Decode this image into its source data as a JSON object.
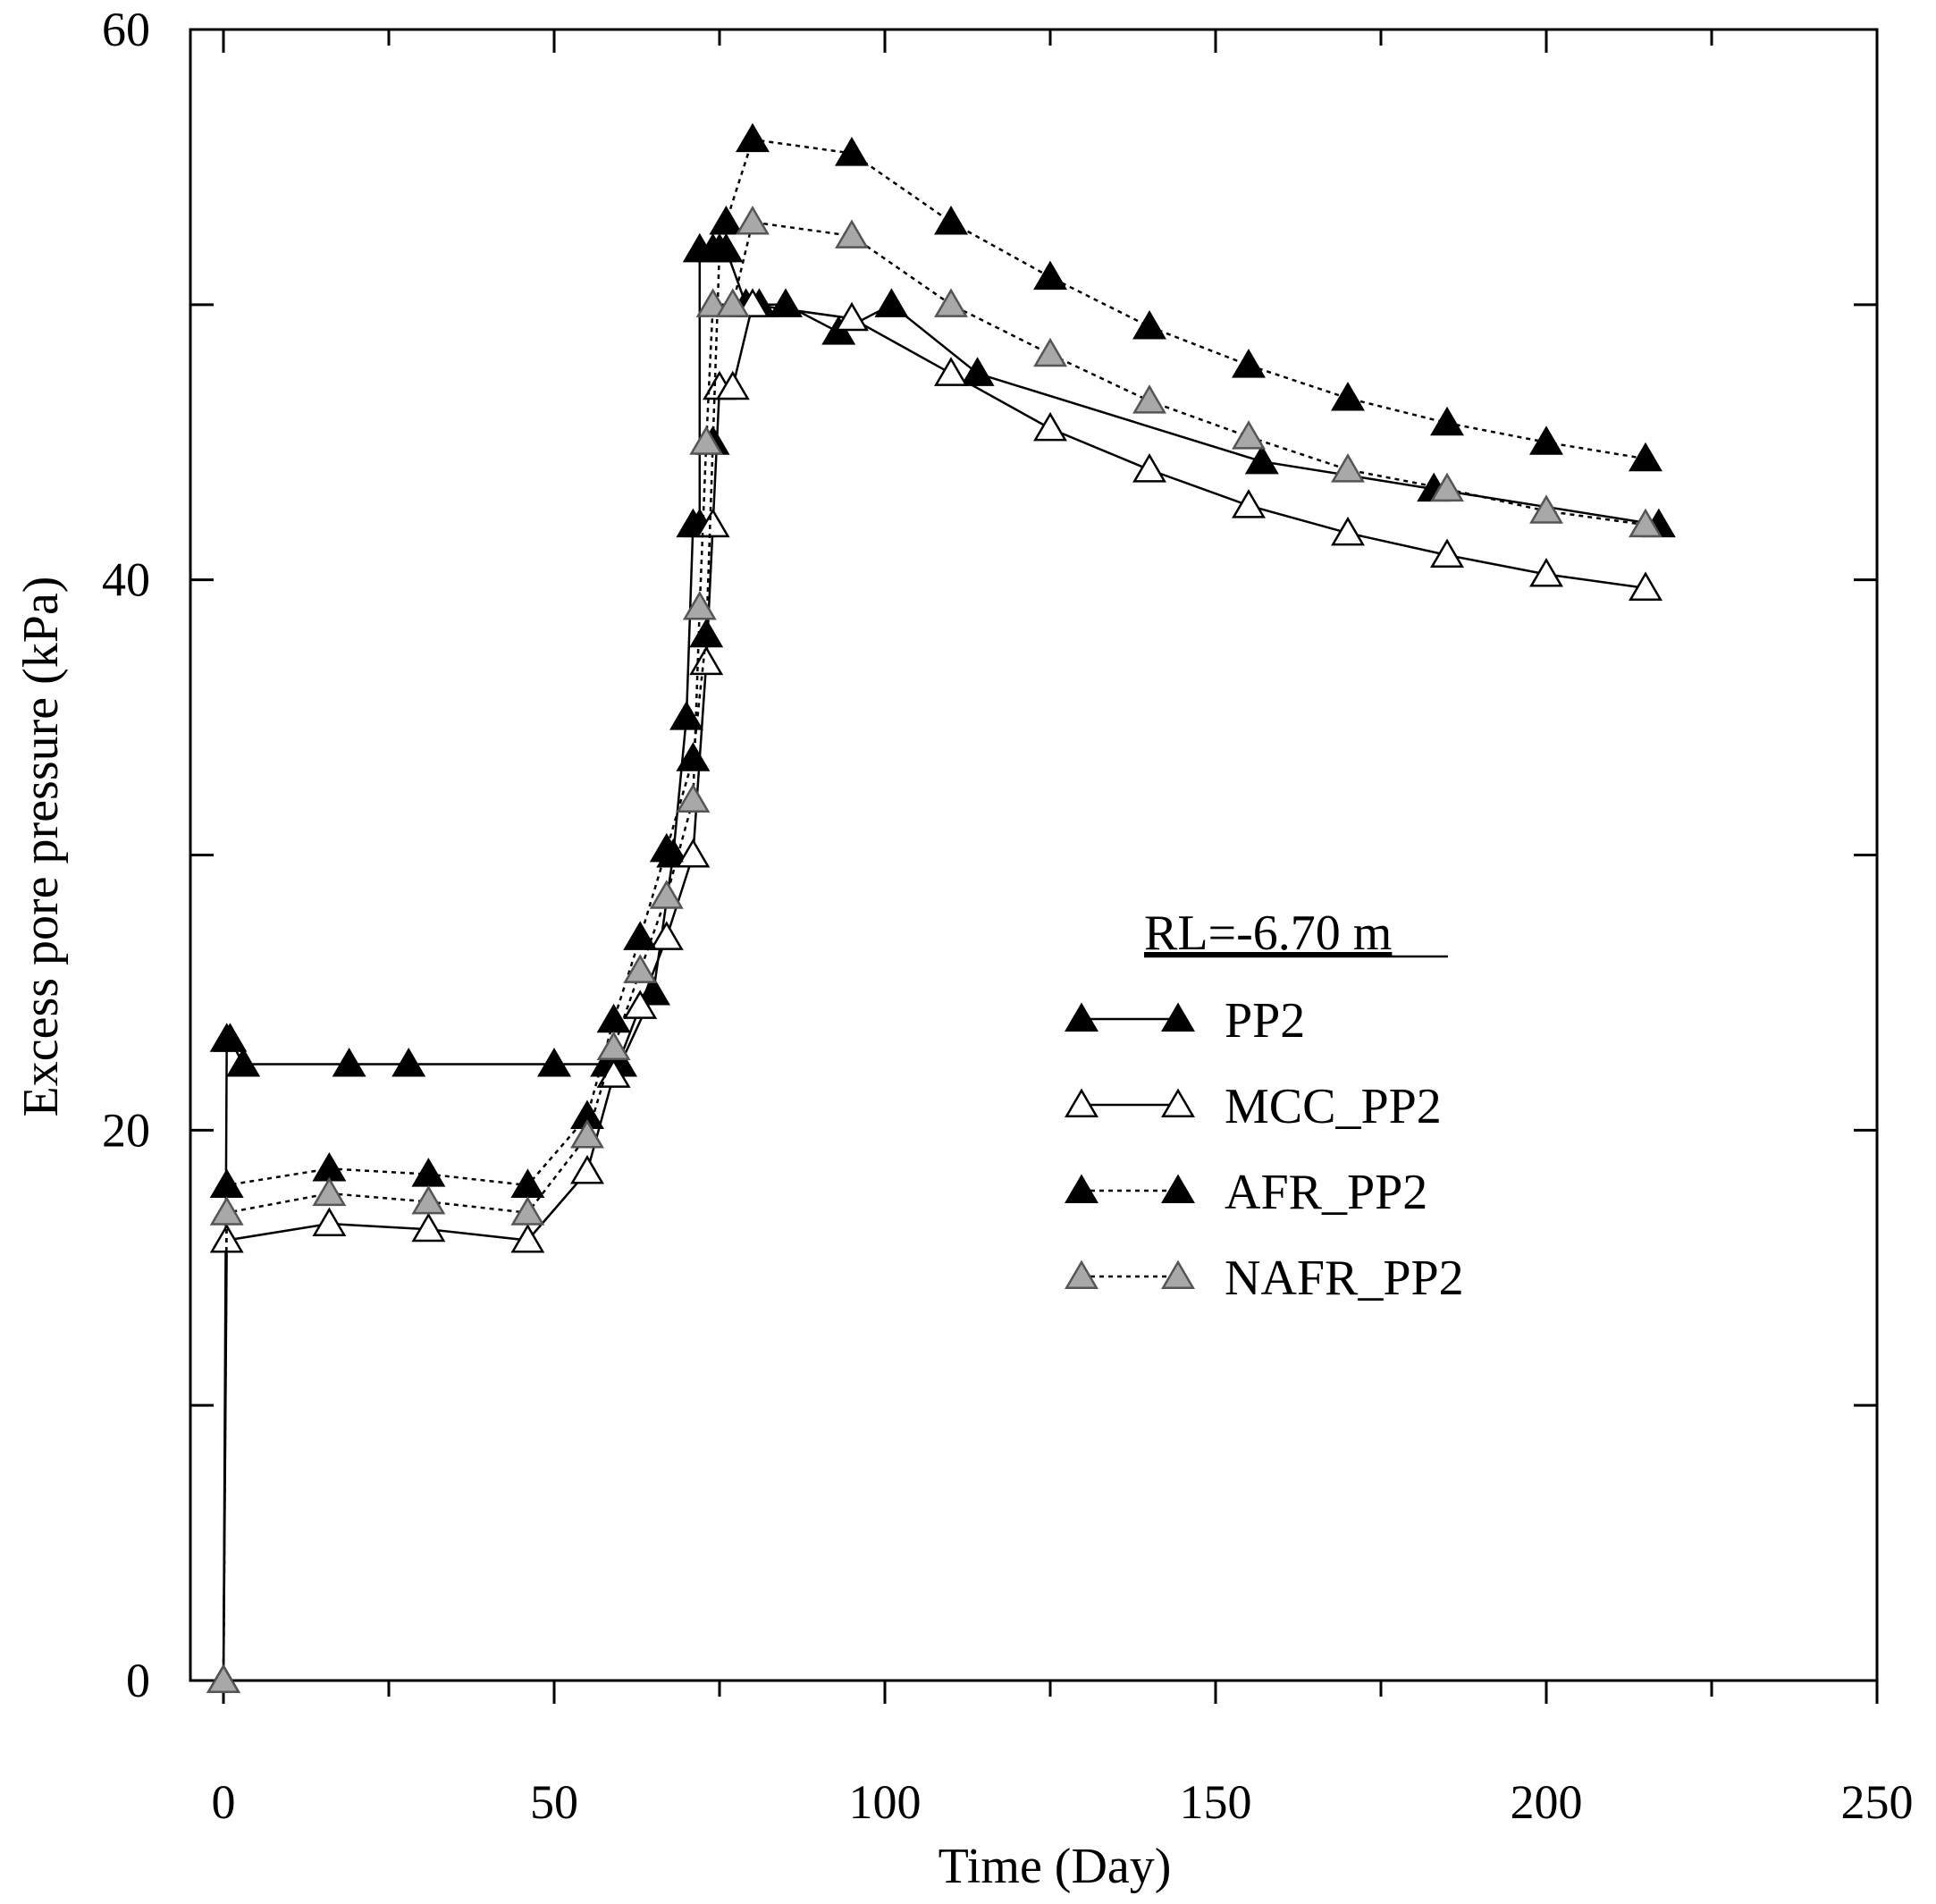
{
  "chart_data": {
    "type": "line",
    "xlabel": "Time (Day)",
    "ylabel": "Excess pore pressure (kPa)",
    "xlim": [
      -5,
      250
    ],
    "ylim": [
      0,
      60
    ],
    "xticks": [
      0,
      50,
      100,
      150,
      200,
      250
    ],
    "yticks": [
      0,
      20,
      40,
      60
    ],
    "xtick_labels": [
      "0",
      "50",
      "100",
      "150",
      "200",
      "250"
    ],
    "ytick_labels": [
      "0",
      "20",
      "40",
      "60"
    ],
    "grid": false,
    "legend_title": "RL=-6.70 m",
    "legend_position": "center-right",
    "series": [
      {
        "name": "PP2",
        "line": "solid",
        "marker": "filled-triangle",
        "color": "#000000",
        "points": [
          [
            0,
            0
          ],
          [
            0.5,
            23.3
          ],
          [
            1,
            23.3
          ],
          [
            3,
            22.4
          ],
          [
            19,
            22.4
          ],
          [
            28,
            22.4
          ],
          [
            50,
            22.4
          ],
          [
            58,
            22.4
          ],
          [
            60,
            22.4
          ],
          [
            65,
            25
          ],
          [
            68,
            30
          ],
          [
            70,
            35
          ],
          [
            71,
            42
          ],
          [
            72,
            42
          ],
          [
            72,
            52
          ],
          [
            74,
            52
          ],
          [
            76,
            52
          ],
          [
            79,
            50
          ],
          [
            81,
            50
          ],
          [
            85,
            50
          ],
          [
            93,
            49
          ],
          [
            101,
            50
          ],
          [
            114,
            47.5
          ],
          [
            157,
            44.3
          ],
          [
            183,
            43.3
          ],
          [
            217,
            42
          ]
        ]
      },
      {
        "name": "MCC_PP2",
        "line": "solid",
        "marker": "open-triangle",
        "color": "#000000",
        "points": [
          [
            0,
            0
          ],
          [
            0.5,
            16
          ],
          [
            16,
            16.6
          ],
          [
            31,
            16.4
          ],
          [
            46,
            16
          ],
          [
            55,
            18.5
          ],
          [
            59,
            22
          ],
          [
            63,
            24.5
          ],
          [
            67,
            27
          ],
          [
            71,
            30
          ],
          [
            73,
            37
          ],
          [
            74,
            42
          ],
          [
            75,
            47
          ],
          [
            77,
            47
          ],
          [
            80,
            50
          ],
          [
            95,
            49.5
          ],
          [
            110,
            47.5
          ],
          [
            125,
            45.5
          ],
          [
            140,
            44
          ],
          [
            155,
            42.7
          ],
          [
            170,
            41.7
          ],
          [
            185,
            40.9
          ],
          [
            200,
            40.2
          ],
          [
            215,
            39.7
          ]
        ]
      },
      {
        "name": "AFR_PP2",
        "line": "dotted",
        "marker": "filled-triangle",
        "color": "#000000",
        "points": [
          [
            0,
            0
          ],
          [
            0.5,
            18
          ],
          [
            16,
            18.6
          ],
          [
            31,
            18.4
          ],
          [
            46,
            18
          ],
          [
            55,
            20.5
          ],
          [
            59,
            24
          ],
          [
            63,
            27
          ],
          [
            67,
            30.2
          ],
          [
            71,
            33.5
          ],
          [
            73,
            38
          ],
          [
            74,
            45
          ],
          [
            75,
            52
          ],
          [
            76,
            53
          ],
          [
            80,
            56
          ],
          [
            95,
            55.5
          ],
          [
            110,
            53
          ],
          [
            125,
            51
          ],
          [
            140,
            49.2
          ],
          [
            155,
            47.8
          ],
          [
            170,
            46.6
          ],
          [
            185,
            45.7
          ],
          [
            200,
            45
          ],
          [
            215,
            44.4
          ]
        ]
      },
      {
        "name": "NAFR_PP2",
        "line": "dotted",
        "marker": "gray-triangle",
        "color": "#aaaaaa",
        "points": [
          [
            0,
            0
          ],
          [
            0.5,
            17
          ],
          [
            16,
            17.7
          ],
          [
            31,
            17.4
          ],
          [
            46,
            17
          ],
          [
            55,
            19.8
          ],
          [
            59,
            23
          ],
          [
            63,
            25.8
          ],
          [
            67,
            28.5
          ],
          [
            71,
            32
          ],
          [
            72,
            39
          ],
          [
            73,
            45
          ],
          [
            74,
            50
          ],
          [
            77,
            50
          ],
          [
            80,
            53
          ],
          [
            95,
            52.5
          ],
          [
            110,
            50
          ],
          [
            125,
            48.2
          ],
          [
            140,
            46.5
          ],
          [
            155,
            45.2
          ],
          [
            170,
            44
          ],
          [
            185,
            43.3
          ],
          [
            200,
            42.5
          ],
          [
            215,
            42
          ]
        ]
      }
    ]
  }
}
